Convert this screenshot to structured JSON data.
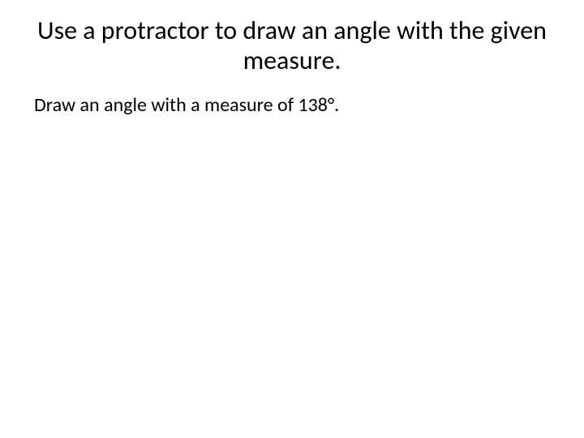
{
  "slide": {
    "title": "Use a protractor to draw an angle with the given measure.",
    "body": "Draw an angle with a measure of 138°.",
    "background_color": "#ffffff",
    "text_color": "#000000",
    "title_fontsize": 32,
    "body_fontsize": 24,
    "font_family": "Calibri"
  }
}
